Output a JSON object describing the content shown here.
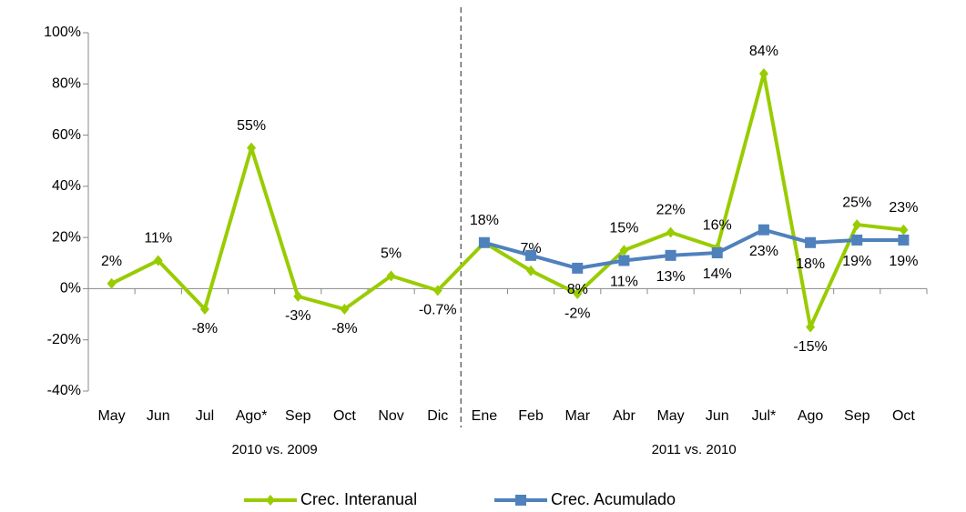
{
  "chart_data": {
    "type": "line",
    "groups": [
      {
        "name": "2010 vs. 2009",
        "categories": [
          "May",
          "Jun",
          "Jul",
          "Ago*",
          "Sep",
          "Oct",
          "Nov",
          "Dic"
        ]
      },
      {
        "name": "2011 vs. 2010",
        "categories": [
          "Ene",
          "Feb",
          "Mar",
          "Abr",
          "May",
          "Jun",
          "Jul*",
          "Ago",
          "Sep",
          "Oct"
        ]
      }
    ],
    "series": [
      {
        "name": "Crec. Interanual",
        "color": "#99cc00",
        "marker": "diamond",
        "values": [
          2,
          11,
          -8,
          55,
          -3,
          -8,
          5,
          -0.7,
          18,
          7,
          -2,
          15,
          22,
          16,
          84,
          -15,
          25,
          23
        ],
        "value_labels": [
          "2%",
          "11%",
          "-8%",
          "55%",
          "-3%",
          "-8%",
          "5%",
          "-0.7%",
          "18%",
          "7%",
          "-2%",
          "15%",
          "22%",
          "16%",
          "84%",
          "-15%",
          "25%",
          "23%"
        ]
      },
      {
        "name": "Crec. Acumulado",
        "color": "#4f81bd",
        "marker": "square",
        "values": [
          null,
          null,
          null,
          null,
          null,
          null,
          null,
          null,
          18,
          13,
          8,
          11,
          13,
          14,
          23,
          18,
          19,
          19
        ],
        "value_labels": [
          null,
          null,
          null,
          null,
          null,
          null,
          null,
          null,
          null,
          null,
          "8%",
          "11%",
          "13%",
          "14%",
          "23%",
          "18%",
          "19%",
          "19%"
        ]
      }
    ],
    "ylim": [
      -40,
      100
    ],
    "yticks": [
      {
        "value": -40,
        "label": "-40%"
      },
      {
        "value": -20,
        "label": "-20%"
      },
      {
        "value": 0,
        "label": "0%"
      },
      {
        "value": 20,
        "label": "20%"
      },
      {
        "value": 40,
        "label": "40%"
      },
      {
        "value": 60,
        "label": "60%"
      },
      {
        "value": 80,
        "label": "80%"
      },
      {
        "value": 100,
        "label": "100%"
      }
    ],
    "legend": "bottom"
  }
}
